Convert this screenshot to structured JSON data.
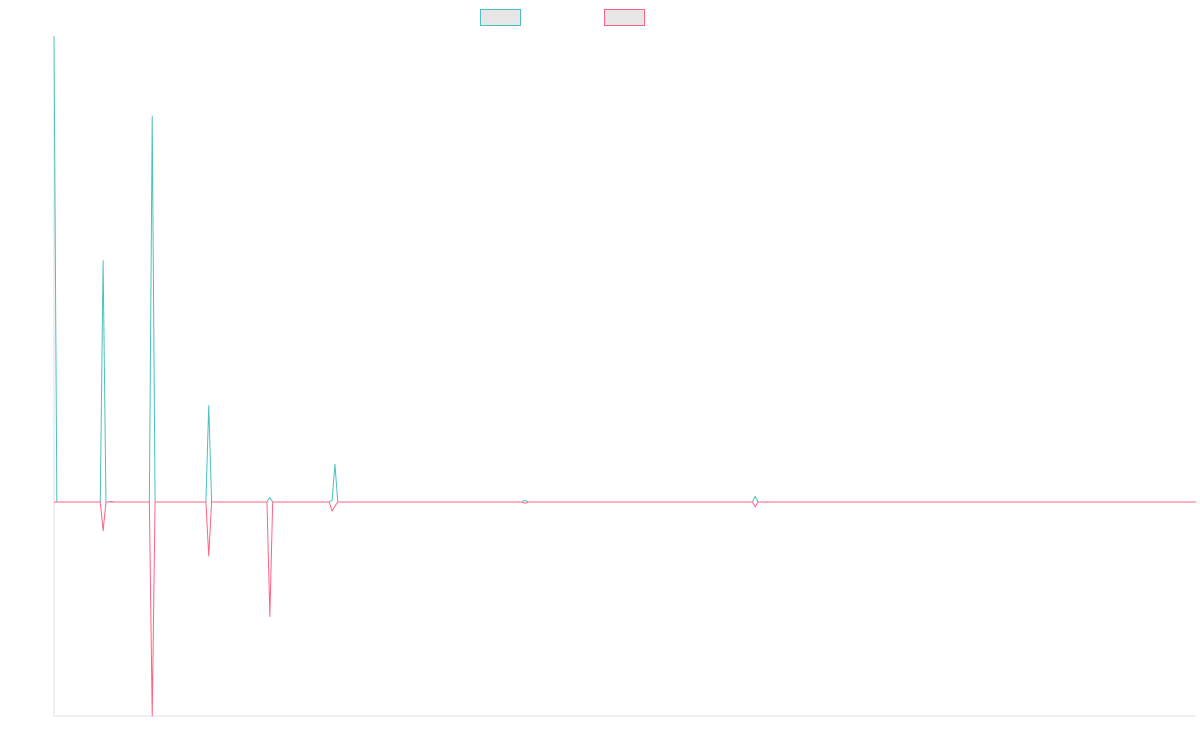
{
  "chart_data": {
    "type": "line",
    "title": "",
    "xlabel": "",
    "ylabel": "",
    "x_domain": [
      0,
      200
    ],
    "ylim": [
      -0.46,
      1.0
    ],
    "grid": false,
    "legend": "top-center",
    "series": [
      {
        "name": "",
        "color": "#4bc0c0",
        "fill": "#e6e6e6",
        "values": [
          [
            0,
            1.0
          ],
          [
            0.5,
            0.0
          ],
          [
            8.1,
            0.0
          ],
          [
            8.6,
            0.518
          ],
          [
            9.1,
            0.0
          ],
          [
            9.6,
            0.0
          ],
          [
            10,
            0.0015
          ],
          [
            10.5,
            0.0
          ],
          [
            16.7,
            0.0
          ],
          [
            17.2,
            0.828
          ],
          [
            17.7,
            0.0
          ],
          [
            26.6,
            0.0
          ],
          [
            27.1,
            0.207
          ],
          [
            27.6,
            0.0
          ],
          [
            37.3,
            0.0
          ],
          [
            37.8,
            0.0095
          ],
          [
            38.3,
            0.0
          ],
          [
            48.2,
            0.0
          ],
          [
            48.7,
            0.0037
          ],
          [
            49.2,
            0.081
          ],
          [
            49.7,
            0.0
          ],
          [
            82,
            0.0
          ],
          [
            82.3,
            0.0026
          ],
          [
            82.7,
            0.0026
          ],
          [
            83,
            0.0
          ],
          [
            122.3,
            0.0
          ],
          [
            122.8,
            0.0122
          ],
          [
            123.3,
            0.0
          ],
          [
            200,
            0.0
          ]
        ]
      },
      {
        "name": "",
        "color": "#ff6384",
        "fill": "#e6e6e6",
        "values": [
          [
            0,
            0.0
          ],
          [
            8.1,
            0.0
          ],
          [
            8.6,
            -0.062
          ],
          [
            9.1,
            0.0
          ],
          [
            16.7,
            0.0
          ],
          [
            17.2,
            -0.46
          ],
          [
            17.7,
            0.0
          ],
          [
            26.6,
            0.0
          ],
          [
            27.1,
            -0.116
          ],
          [
            27.6,
            0.0
          ],
          [
            37.3,
            0.0
          ],
          [
            37.8,
            -0.246
          ],
          [
            38.3,
            0.0
          ],
          [
            48.2,
            0.0
          ],
          [
            48.7,
            -0.0195
          ],
          [
            49.2,
            -0.009
          ],
          [
            49.7,
            0.0
          ],
          [
            82,
            0.0
          ],
          [
            82.3,
            -0.0022
          ],
          [
            82.7,
            -0.0022
          ],
          [
            83,
            0.0
          ],
          [
            122.3,
            0.0
          ],
          [
            122.8,
            -0.0105
          ],
          [
            123.3,
            0.0
          ],
          [
            200,
            0.0
          ]
        ]
      }
    ]
  }
}
